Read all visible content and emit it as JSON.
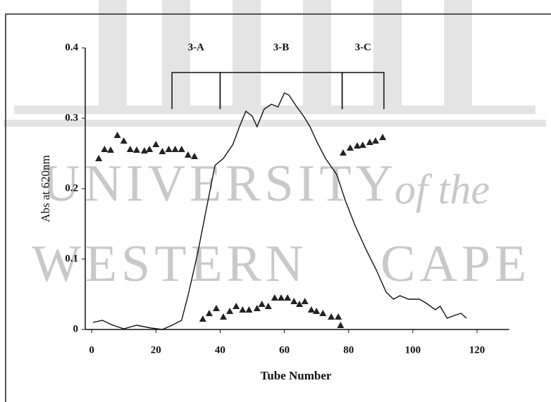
{
  "chart_data": {
    "type": "line",
    "xlabel": "Tube Number",
    "ylabel": "Abs at 620nm",
    "xlim": [
      -2,
      130
    ],
    "ylim": [
      0,
      0.4
    ],
    "xticks": [
      0,
      20,
      40,
      60,
      80,
      100,
      120
    ],
    "yticks": [
      0,
      0.1,
      0.2,
      0.3,
      0.4
    ],
    "watermark": [
      "UNIVERSITY",
      "of the",
      "WESTERN",
      "CAPE"
    ],
    "fractions": [
      {
        "label": "3-A",
        "start": 25,
        "end": 40
      },
      {
        "label": "3-B",
        "start": 40,
        "end": 78
      },
      {
        "label": "3-C",
        "start": 78,
        "end": 91
      }
    ],
    "series": [
      {
        "style": "line",
        "color": "#111111",
        "x": [
          0.4,
          3.3,
          6.6,
          10,
          14,
          18.6,
          22,
          25,
          28,
          30,
          33,
          36,
          38.4,
          41,
          44,
          46,
          48,
          50,
          51.5,
          53.7,
          56,
          58,
          60,
          61.4,
          63.6,
          66,
          68,
          70,
          72.8,
          76.3,
          79,
          82,
          85.5,
          88.8,
          91.7,
          94,
          96,
          98.7,
          102,
          104,
          107,
          108.5,
          110.7,
          113,
          115,
          116.7
        ],
        "values": [
          0.01,
          0.013,
          0.006,
          0.001,
          0.006,
          0.002,
          0,
          0.006,
          0.013,
          0.048,
          0.108,
          0.178,
          0.233,
          0.243,
          0.263,
          0.288,
          0.31,
          0.303,
          0.288,
          0.313,
          0.32,
          0.316,
          0.336,
          0.333,
          0.318,
          0.303,
          0.288,
          0.268,
          0.243,
          0.22,
          0.183,
          0.148,
          0.113,
          0.083,
          0.053,
          0.043,
          0.048,
          0.043,
          0.043,
          0.038,
          0.028,
          0.033,
          0.016,
          0.02,
          0.023,
          0.016
        ]
      },
      {
        "style": "triangle",
        "color": "#222222",
        "x": [
          2.2,
          4,
          5.9,
          8,
          10,
          12,
          14,
          16.4,
          18,
          20,
          22,
          24,
          26,
          28,
          30,
          32,
          34.6,
          36.6,
          38.8,
          41,
          43,
          45,
          47,
          49,
          51.5,
          53,
          55,
          57,
          59,
          61,
          63,
          64.7,
          66.4,
          68.4,
          70,
          72,
          74.6,
          76.8,
          77.5,
          78.3,
          80.5,
          82.7,
          84.4,
          86.6,
          88.4,
          90.6
        ],
        "values": [
          0.243,
          0.256,
          0.255,
          0.276,
          0.268,
          0.256,
          0.255,
          0.254,
          0.256,
          0.263,
          0.253,
          0.256,
          0.256,
          0.256,
          0.248,
          0.246,
          0.015,
          0.023,
          0.03,
          0.018,
          0.026,
          0.033,
          0.028,
          0.028,
          0.03,
          0.036,
          0.033,
          0.045,
          0.045,
          0.045,
          0.04,
          0.036,
          0.04,
          0.028,
          0.026,
          0.023,
          0.018,
          0.018,
          0.006,
          0.251,
          0.258,
          0.261,
          0.262,
          0.266,
          0.268,
          0.273
        ]
      }
    ]
  }
}
